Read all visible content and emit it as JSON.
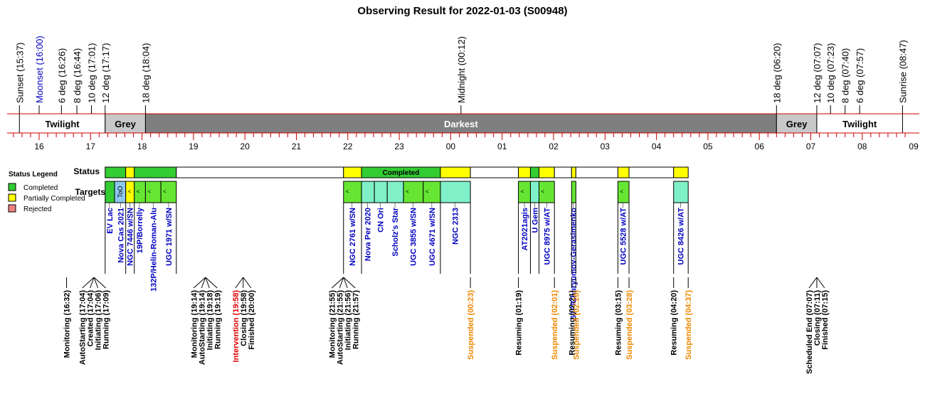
{
  "chart_data": {
    "type": "timeline",
    "title": "Observing Result for 2022-01-03 (S00948)",
    "x_range_hours": [
      15.3,
      33.0
    ],
    "twilight_events": [
      {
        "label": "Sunset (15:37)",
        "time": "15:37",
        "color": "#000000"
      },
      {
        "label": "Moonset (16:00)",
        "time": "16:00",
        "color": "#0000c0"
      },
      {
        "label": "6 deg (16:26)",
        "time": "16:26",
        "color": "#000000"
      },
      {
        "label": "8 deg (16:44)",
        "time": "16:44",
        "color": "#000000"
      },
      {
        "label": "10 deg (17:01)",
        "time": "17:01",
        "color": "#000000"
      },
      {
        "label": "12 deg (17:17)",
        "time": "17:17",
        "color": "#000000"
      },
      {
        "label": "18 deg (18:04)",
        "time": "18:04",
        "color": "#000000"
      },
      {
        "label": "Midnight (00:12)",
        "time": "00:12",
        "color": "#000000"
      },
      {
        "label": "18 deg (06:20)",
        "time": "06:20",
        "color": "#000000"
      },
      {
        "label": "12 deg (07:07)",
        "time": "07:07",
        "color": "#000000"
      },
      {
        "label": "10 deg (07:23)",
        "time": "07:23",
        "color": "#000000"
      },
      {
        "label": "8 deg (07:40)",
        "time": "07:40",
        "color": "#000000"
      },
      {
        "label": "6 deg (07:57)",
        "time": "07:57",
        "color": "#000000"
      },
      {
        "label": "Sunrise (08:47)",
        "time": "08:47",
        "color": "#000000"
      }
    ],
    "periods": [
      {
        "label": "Twilight",
        "start": "15:37",
        "end": "17:17",
        "fill": "#ffffff",
        "text_color": "#000000"
      },
      {
        "label": "Grey",
        "start": "17:17",
        "end": "18:04",
        "fill": "#c8c8c8",
        "text_color": "#000000"
      },
      {
        "label": "Darkest",
        "start": "18:04",
        "end": "06:20",
        "fill": "#7f7f7f",
        "text_color": "#ffffff"
      },
      {
        "label": "Grey",
        "start": "06:20",
        "end": "07:07",
        "fill": "#c8c8c8",
        "text_color": "#000000"
      },
      {
        "label": "Twilight",
        "start": "07:07",
        "end": "08:47",
        "fill": "#ffffff",
        "text_color": "#000000"
      }
    ],
    "hour_ticks": [
      "16",
      "17",
      "18",
      "19",
      "20",
      "21",
      "22",
      "23",
      "00",
      "01",
      "02",
      "03",
      "04",
      "05",
      "06",
      "07",
      "08",
      "09"
    ],
    "row_labels": {
      "status": "Status",
      "targets": "Targets"
    },
    "legend": {
      "title": "Status Legend",
      "items": [
        {
          "label": "Completed",
          "color": "#33cc33"
        },
        {
          "label": "Partially Completed",
          "color": "#ffff00"
        },
        {
          "label": "Rejected",
          "color": "#f08080"
        }
      ]
    },
    "status_segments": [
      {
        "start": "17:17",
        "end": "17:41",
        "fill": "#33cc33",
        "label": ""
      },
      {
        "start": "17:41",
        "end": "17:51",
        "fill": "#ffff00",
        "label": ""
      },
      {
        "start": "17:51",
        "end": "18:40",
        "fill": "#33cc33",
        "label": ""
      },
      {
        "start": "18:40",
        "end": "21:55",
        "fill": "#ffffff",
        "label": ""
      },
      {
        "start": "21:55",
        "end": "22:16",
        "fill": "#ffff00",
        "label": ""
      },
      {
        "start": "22:16",
        "end": "23:48",
        "fill": "#33cc33",
        "label": "Completed"
      },
      {
        "start": "23:48",
        "end": "00:23",
        "fill": "#ffff00",
        "label": ""
      },
      {
        "start": "00:23",
        "end": "01:19",
        "fill": "#ffffff",
        "label": ""
      },
      {
        "start": "01:19",
        "end": "01:33",
        "fill": "#ffff00",
        "label": ""
      },
      {
        "start": "01:33",
        "end": "01:43",
        "fill": "#33cc33",
        "label": ""
      },
      {
        "start": "01:43",
        "end": "02:01",
        "fill": "#ffff00",
        "label": ""
      },
      {
        "start": "02:01",
        "end": "02:21",
        "fill": "#ffffff",
        "label": ""
      },
      {
        "start": "02:21",
        "end": "02:26",
        "fill": "#ffff00",
        "label": ""
      },
      {
        "start": "02:26",
        "end": "03:15",
        "fill": "#ffffff",
        "label": ""
      },
      {
        "start": "03:15",
        "end": "03:28",
        "fill": "#ffff00",
        "label": ""
      },
      {
        "start": "03:28",
        "end": "04:20",
        "fill": "#ffffff",
        "label": ""
      },
      {
        "start": "04:20",
        "end": "04:37",
        "fill": "#ffff00",
        "label": ""
      }
    ],
    "target_segments": [
      {
        "start": "17:17",
        "end": "17:28",
        "fill": "#33cc33",
        "mark": ""
      },
      {
        "start": "17:28",
        "end": "17:41",
        "fill": "#8ec8f0",
        "mark": "ToO"
      },
      {
        "start": "17:41",
        "end": "17:51",
        "fill": "#ffff00",
        "mark": "<"
      },
      {
        "start": "17:51",
        "end": "18:04",
        "fill": "#66e633",
        "mark": "<"
      },
      {
        "start": "18:04",
        "end": "18:22",
        "fill": "#66e633",
        "mark": "<"
      },
      {
        "start": "18:22",
        "end": "18:40",
        "fill": "#66e633",
        "mark": "<"
      },
      {
        "start": "21:55",
        "end": "22:16",
        "fill": "#66e633",
        "mark": "<"
      },
      {
        "start": "22:16",
        "end": "22:31",
        "fill": "#80f0c8",
        "mark": ""
      },
      {
        "start": "22:31",
        "end": "22:46",
        "fill": "#80f0c8",
        "mark": ""
      },
      {
        "start": "22:46",
        "end": "23:05",
        "fill": "#80f0c8",
        "mark": ""
      },
      {
        "start": "23:05",
        "end": "23:28",
        "fill": "#66e633",
        "mark": "<"
      },
      {
        "start": "23:28",
        "end": "23:48",
        "fill": "#66e633",
        "mark": "<"
      },
      {
        "start": "23:48",
        "end": "00:23",
        "fill": "#80f0c8",
        "mark": ""
      },
      {
        "start": "01:19",
        "end": "01:33",
        "fill": "#66e633",
        "mark": "<"
      },
      {
        "start": "01:33",
        "end": "01:43",
        "fill": "#80f0c8",
        "mark": ""
      },
      {
        "start": "01:43",
        "end": "02:01",
        "fill": "#66e633",
        "mark": "<"
      },
      {
        "start": "02:21",
        "end": "02:26",
        "fill": "#66e633",
        "mark": ""
      },
      {
        "start": "03:15",
        "end": "03:28",
        "fill": "#66e633",
        "mark": "<"
      },
      {
        "start": "04:20",
        "end": "04:37",
        "fill": "#80f0c8",
        "mark": ""
      }
    ],
    "targets": [
      {
        "name": "EV Lac",
        "time": "17:22"
      },
      {
        "name": "Nova Cas 2021",
        "time": "17:35"
      },
      {
        "name": "NGC 7446 w/SN",
        "time": "17:46"
      },
      {
        "name": "19P/Borrelly",
        "time": "17:57"
      },
      {
        "name": "132P/Helin-Roman-Alu",
        "time": "18:13"
      },
      {
        "name": "UGC 1971 w/SN",
        "time": "18:31"
      },
      {
        "name": "NGC 2761 w/SN",
        "time": "22:05"
      },
      {
        "name": "Nova Per 2020",
        "time": "22:23"
      },
      {
        "name": "CN Ori",
        "time": "22:38"
      },
      {
        "name": "Scholz's Star",
        "time": "22:55"
      },
      {
        "name": "UGC 3855 w/SN",
        "time": "23:16"
      },
      {
        "name": "UGC 4671 w/SN",
        "time": "23:38"
      },
      {
        "name": "NGC 2313",
        "time": "00:05"
      },
      {
        "name": "AT2021agis",
        "time": "01:26"
      },
      {
        "name": "U Gem",
        "time": "01:38"
      },
      {
        "name": "UGC 8975 w/AT",
        "time": "01:52"
      },
      {
        "name": "67P/Churyumov-Gerasimenko",
        "time": "02:23"
      },
      {
        "name": "UGC 5528 w/AT",
        "time": "03:21"
      },
      {
        "name": "UGC 8426 w/AT",
        "time": "04:28"
      }
    ],
    "event_groups": [
      {
        "anchor": "16:32",
        "labels": [
          {
            "text": "Monitoring (16:32)",
            "color": "#000000"
          }
        ]
      },
      {
        "anchor": "17:04",
        "labels": [
          {
            "text": "AutoStarting (17:04)",
            "color": "#000000"
          },
          {
            "text": "Created (17:04)",
            "color": "#000000"
          },
          {
            "text": "Initiating (17:06)",
            "color": "#000000"
          },
          {
            "text": "Running (17:09)",
            "color": "#000000"
          }
        ]
      },
      {
        "anchor": "19:14",
        "labels": [
          {
            "text": "Monitoring (19:14)",
            "color": "#000000"
          },
          {
            "text": "AutoStarting (19:14)",
            "color": "#000000"
          },
          {
            "text": "Initiating (19:18)",
            "color": "#000000"
          },
          {
            "text": "Running (19:19)",
            "color": "#000000"
          }
        ]
      },
      {
        "anchor": "19:58",
        "labels": [
          {
            "text": "Intervention (19:58)",
            "color": "#dd0000"
          },
          {
            "text": "Closing (19:58)",
            "color": "#000000"
          },
          {
            "text": "Finished (20:00)",
            "color": "#000000"
          }
        ]
      },
      {
        "anchor": "21:55",
        "labels": [
          {
            "text": "Monitoring (21:55)",
            "color": "#000000"
          },
          {
            "text": "AutoStarting (21:55)",
            "color": "#000000"
          },
          {
            "text": "Initiating (21:56)",
            "color": "#000000"
          },
          {
            "text": "Running (21:57)",
            "color": "#000000"
          }
        ]
      },
      {
        "anchor": "00:23",
        "labels": [
          {
            "text": "Suspended (00:23)",
            "color": "#ee8800"
          }
        ]
      },
      {
        "anchor": "01:19",
        "labels": [
          {
            "text": "Resuming (01:19)",
            "color": "#000000"
          }
        ]
      },
      {
        "anchor": "02:01",
        "labels": [
          {
            "text": "Suspended (02:01)",
            "color": "#ee8800"
          }
        ]
      },
      {
        "anchor": "02:21",
        "labels": [
          {
            "text": "Resuming (02:21)",
            "color": "#000000"
          }
        ]
      },
      {
        "anchor": "02:26",
        "labels": [
          {
            "text": "Suspended (02:26)",
            "color": "#ee8800"
          }
        ]
      },
      {
        "anchor": "03:15",
        "labels": [
          {
            "text": "Resuming (03:15)",
            "color": "#000000"
          }
        ]
      },
      {
        "anchor": "03:28",
        "labels": [
          {
            "text": "Suspended (03:28)",
            "color": "#ee8800"
          }
        ]
      },
      {
        "anchor": "04:20",
        "labels": [
          {
            "text": "Resuming (04:20)",
            "color": "#000000"
          }
        ]
      },
      {
        "anchor": "04:37",
        "labels": [
          {
            "text": "Suspended (04:37)",
            "color": "#ee8800"
          }
        ]
      },
      {
        "anchor": "07:07",
        "labels": [
          {
            "text": "Scheduled End (07:07)",
            "color": "#000000"
          },
          {
            "text": "Closing (07:11)",
            "color": "#000000"
          },
          {
            "text": "Finished (07:15)",
            "color": "#000000"
          }
        ]
      }
    ],
    "colors": {
      "axis": "#cc0000",
      "target_text": "#0000c0"
    }
  }
}
